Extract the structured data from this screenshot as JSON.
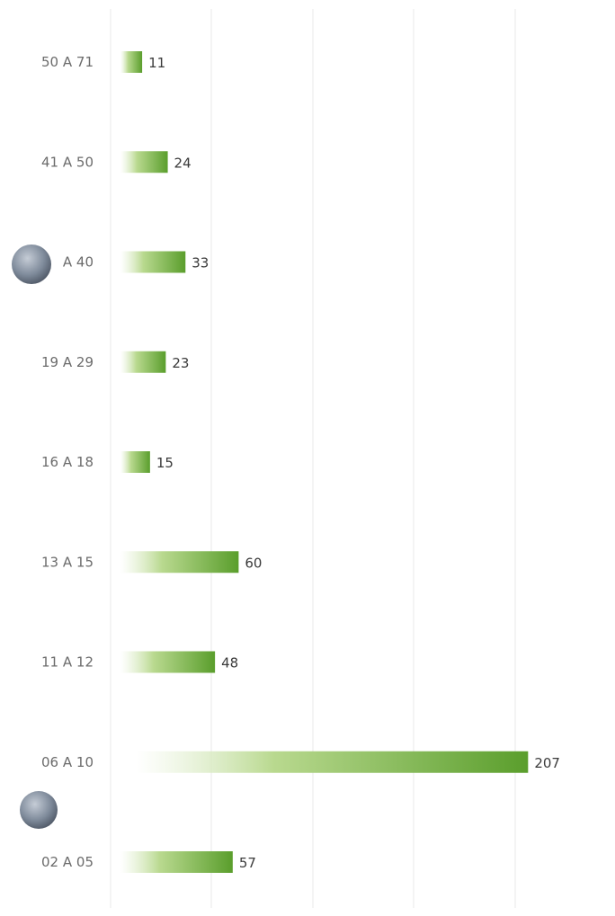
{
  "chart_data": {
    "type": "bar",
    "orientation": "horizontal",
    "categories": [
      "50 A 71",
      "41 A 50",
      "A 40",
      "19 A 29",
      "16 A 18",
      "13 A 15",
      "11 A 12",
      "06 A 10",
      "02 A 05"
    ],
    "values": [
      11,
      24,
      33,
      23,
      15,
      60,
      48,
      207,
      57
    ],
    "data_labels": [
      "11",
      "24",
      "33",
      "23",
      "15",
      "60",
      "48",
      "207",
      "57"
    ],
    "xlim": [
      0,
      250
    ],
    "grid": true,
    "colors": {
      "bar_dark": "#5a9e2c",
      "bar_light": "#ffffff",
      "grid": "#e8e8e8",
      "category_text": "#6b6b6b",
      "value_text": "#3a3a3a",
      "dot": "#7f8c9c"
    }
  }
}
